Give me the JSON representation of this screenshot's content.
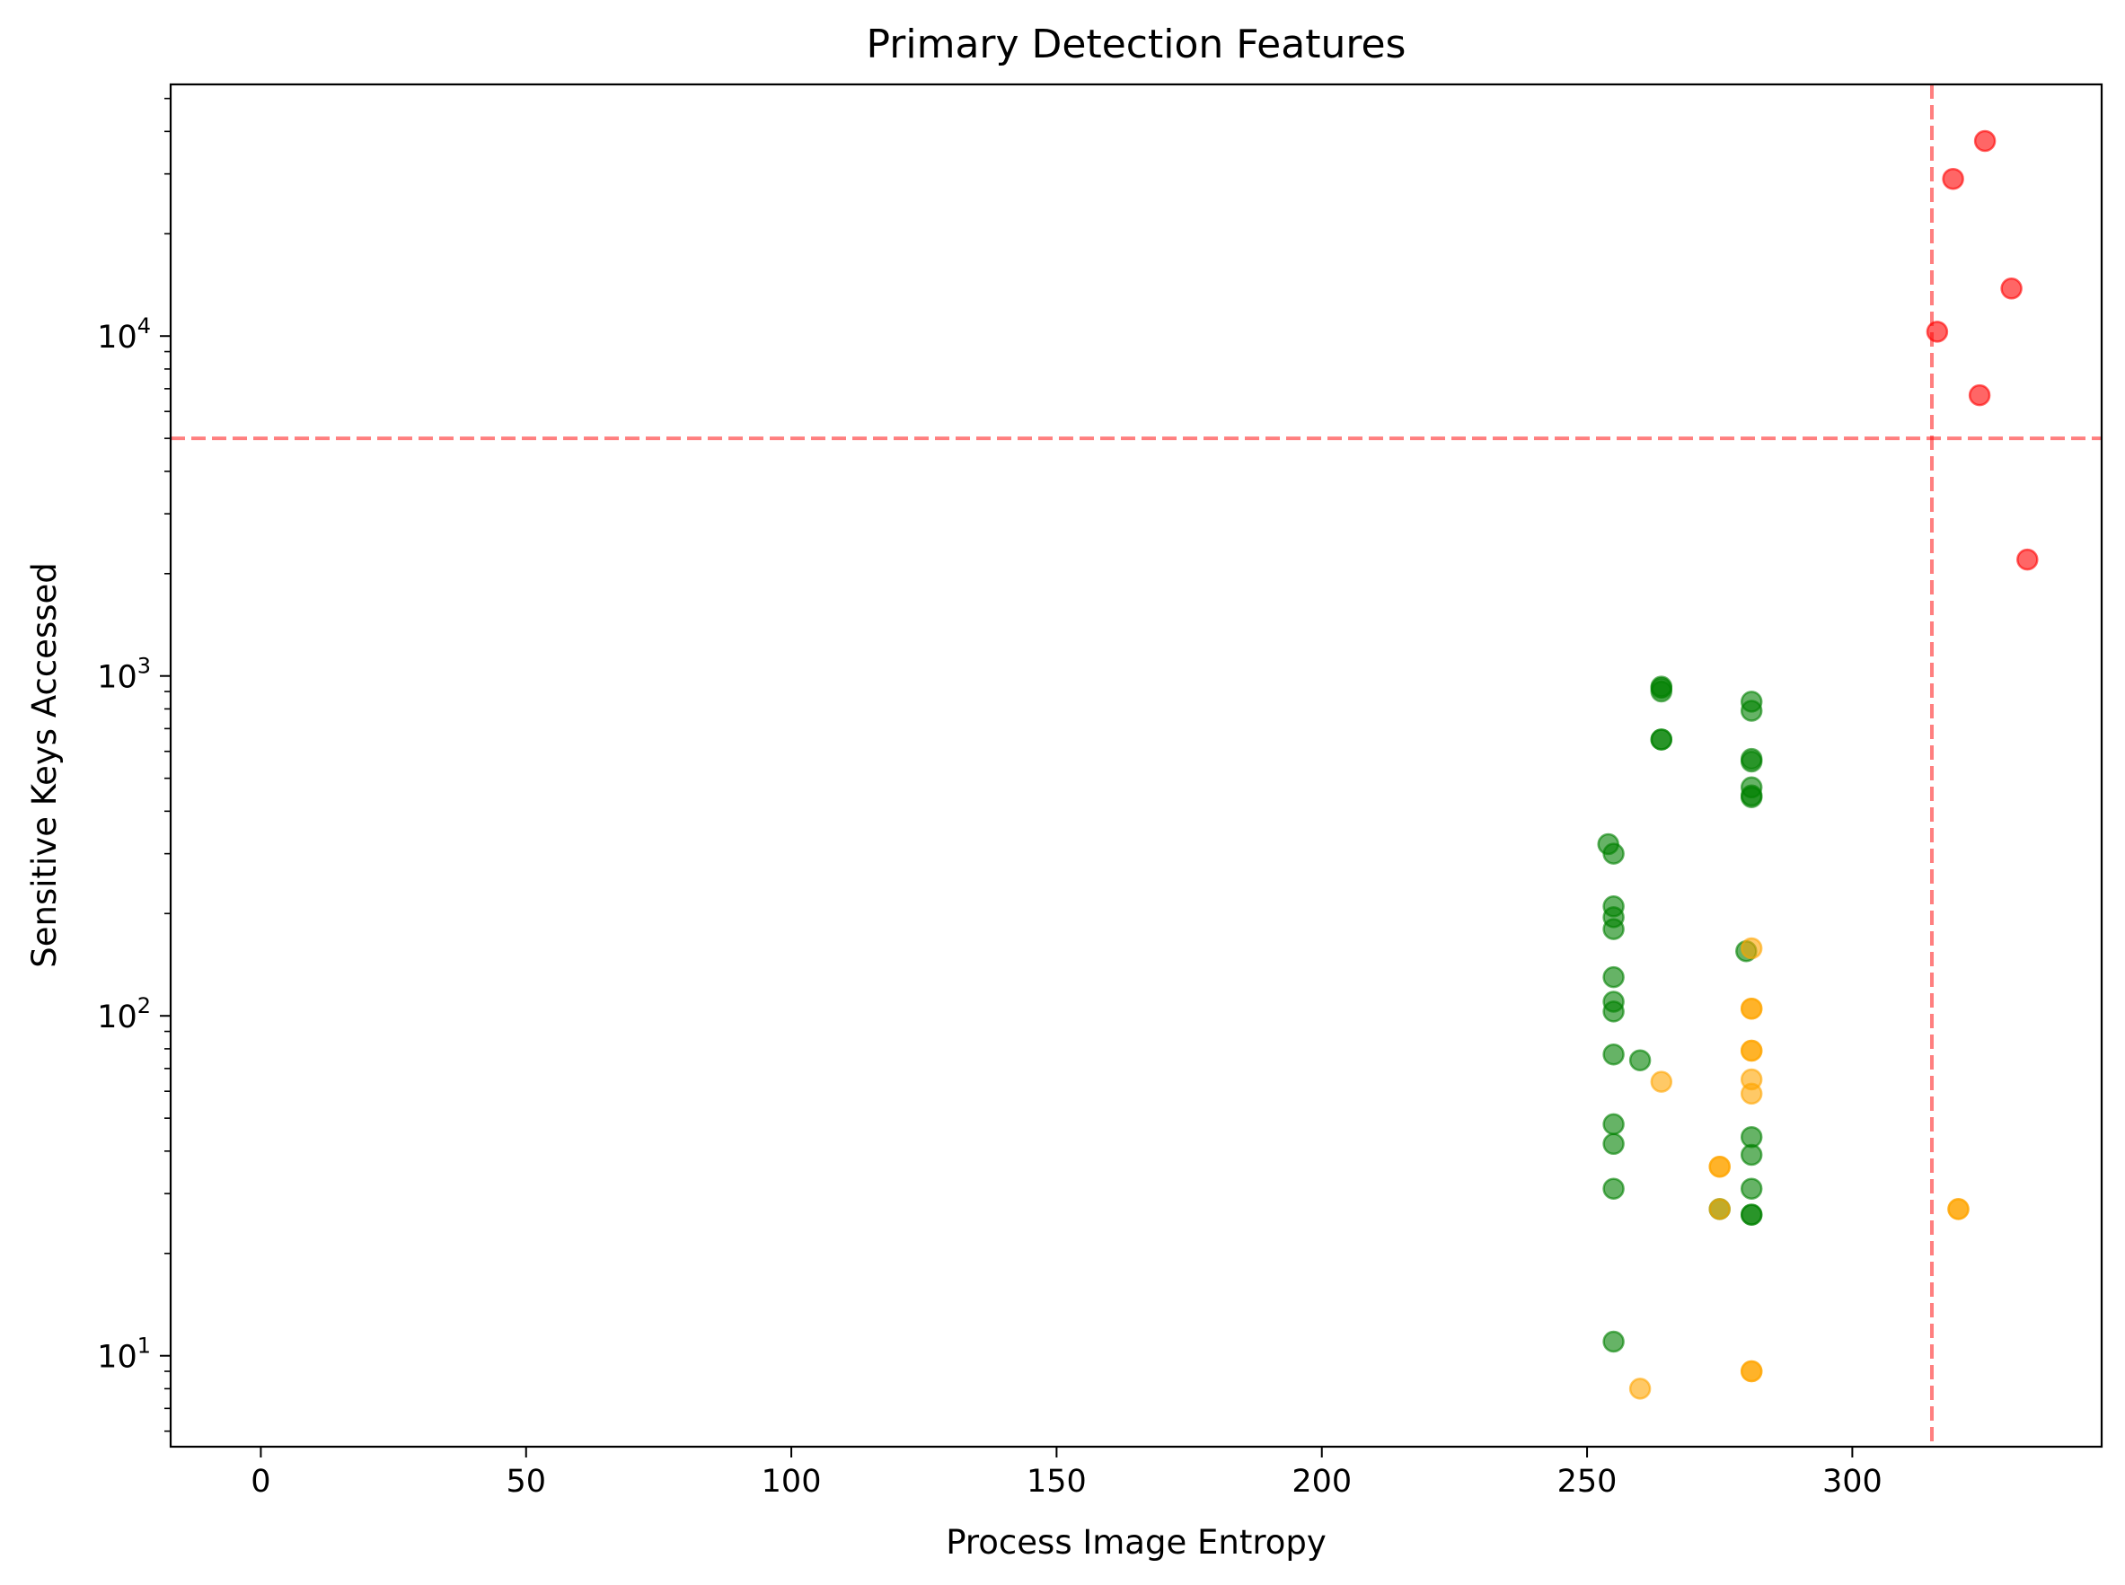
{
  "chart_data": {
    "type": "scatter",
    "title": "Primary Detection Features",
    "xlabel": "Process Image Entropy",
    "ylabel": "Sensitive Keys Accessed",
    "yscale": "log",
    "xlim": [
      -17,
      347
    ],
    "ylim": [
      5.4,
      55000
    ],
    "xticks": [
      0,
      50,
      100,
      150,
      200,
      250,
      300
    ],
    "yticks": [
      {
        "value": 10,
        "base": "10",
        "exponent": "1"
      },
      {
        "value": 100,
        "base": "10",
        "exponent": "2"
      },
      {
        "value": 1000,
        "base": "10",
        "exponent": "3"
      },
      {
        "value": 10000,
        "base": "10",
        "exponent": "4"
      }
    ],
    "grid": false,
    "legend": "none",
    "reference_lines": [
      {
        "orientation": "vertical",
        "value": 315,
        "color": "#ff0000",
        "style": "dashed",
        "alpha": 0.5
      },
      {
        "orientation": "horizontal",
        "value": 5000,
        "color": "#ff0000",
        "style": "dashed",
        "alpha": 0.5
      }
    ],
    "series": [
      {
        "color": "#008000",
        "alpha": 0.6,
        "points": [
          [
            254,
            320
          ],
          [
            255,
            300
          ],
          [
            255,
            210
          ],
          [
            255,
            195
          ],
          [
            255,
            180
          ],
          [
            255,
            130
          ],
          [
            255,
            110
          ],
          [
            255,
            103
          ],
          [
            255,
            77
          ],
          [
            255,
            48
          ],
          [
            255,
            42
          ],
          [
            255,
            31
          ],
          [
            255,
            11
          ],
          [
            260,
            74
          ],
          [
            264,
            920
          ],
          [
            264,
            930
          ],
          [
            264,
            900
          ],
          [
            264,
            650
          ],
          [
            264,
            650
          ],
          [
            275,
            27
          ],
          [
            280,
            155
          ],
          [
            281,
            840
          ],
          [
            281,
            790
          ],
          [
            281,
            570
          ],
          [
            281,
            560
          ],
          [
            281,
            470
          ],
          [
            281,
            440
          ],
          [
            281,
            445
          ],
          [
            281,
            44
          ],
          [
            281,
            39
          ],
          [
            281,
            31
          ],
          [
            281,
            26
          ],
          [
            281,
            26
          ]
        ]
      },
      {
        "color": "#ffa500",
        "alpha": 0.6,
        "points": [
          [
            260,
            8
          ],
          [
            264,
            64
          ],
          [
            275,
            36
          ],
          [
            275,
            36
          ],
          [
            275,
            27
          ],
          [
            281,
            158
          ],
          [
            281,
            105
          ],
          [
            281,
            105
          ],
          [
            281,
            79
          ],
          [
            281,
            79
          ],
          [
            281,
            65
          ],
          [
            281,
            59
          ],
          [
            281,
            9
          ],
          [
            281,
            9
          ],
          [
            320,
            27
          ],
          [
            320,
            27
          ]
        ]
      },
      {
        "color": "#ff0000",
        "alpha": 0.6,
        "points": [
          [
            316,
            10300
          ],
          [
            319,
            29000
          ],
          [
            324,
            6700
          ],
          [
            325,
            37500
          ],
          [
            330,
            13800
          ],
          [
            333,
            2200
          ]
        ]
      }
    ]
  }
}
